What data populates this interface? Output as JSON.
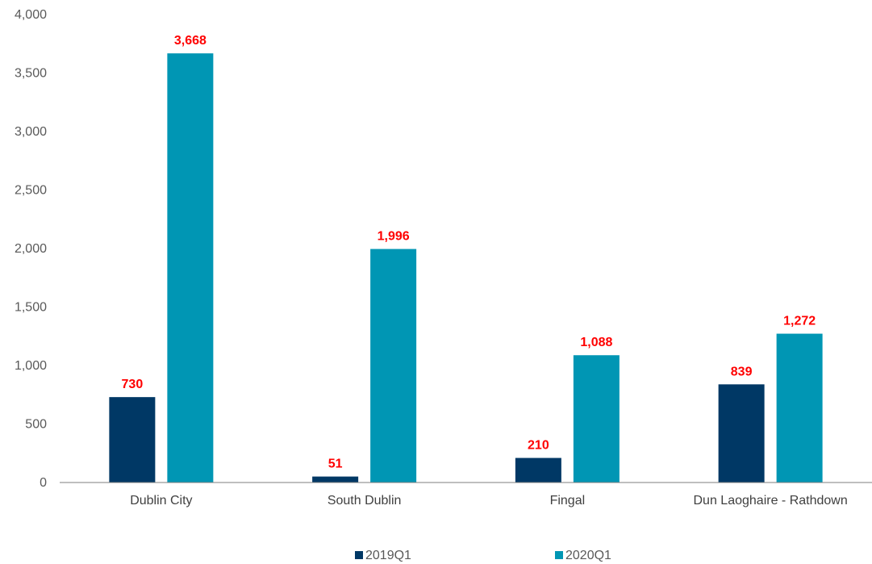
{
  "chart_data": {
    "type": "bar",
    "categories": [
      "Dublin City",
      "South Dublin",
      "Fingal",
      "Dun Laoghaire - Rathdown"
    ],
    "series": [
      {
        "name": "2019Q1",
        "values": [
          730,
          51,
          210,
          839
        ],
        "color": "#003865"
      },
      {
        "name": "2020Q1",
        "values": [
          3668,
          1996,
          1088,
          1272
        ],
        "color": "#0096B4"
      }
    ],
    "data_labels": {
      "2019Q1": [
        "730",
        "51",
        "210",
        "839"
      ],
      "2020Q1": [
        "3,668",
        "1,996",
        "1,088",
        "1,272"
      ]
    },
    "ylim": [
      0,
      4000
    ],
    "yticks": [
      0,
      500,
      1000,
      1500,
      2000,
      2500,
      3000,
      3500,
      4000
    ],
    "ytick_labels": [
      "0",
      "500",
      "1,000",
      "1,500",
      "2,000",
      "2,500",
      "3,000",
      "3,500",
      "4,000"
    ],
    "grid": false,
    "legend_position": "bottom",
    "data_label_color": "#FF0000"
  }
}
